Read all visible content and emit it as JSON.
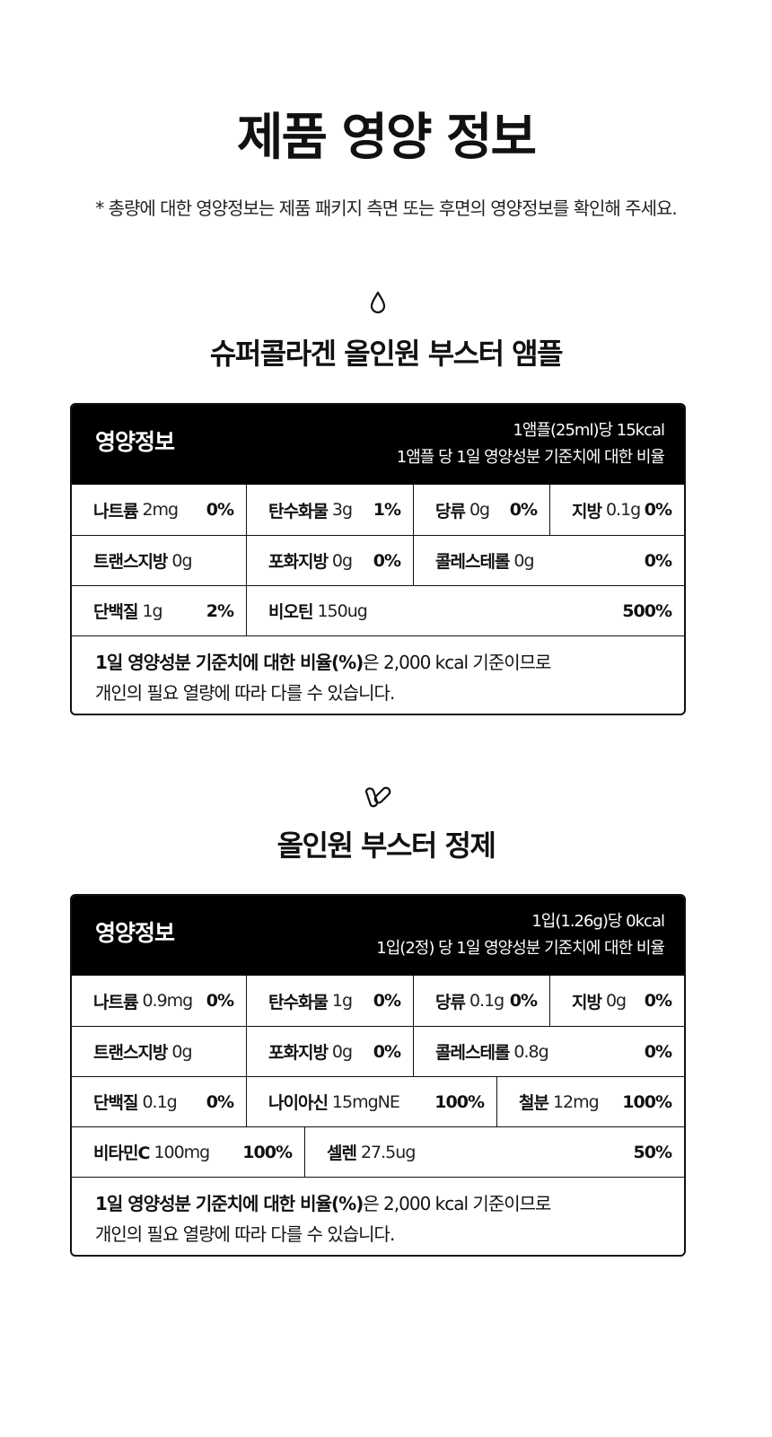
{
  "page": {
    "title": "제품 영양 정보",
    "notice": "* 총량에 대한 영양정보는 제품 패키지 측면 또는 후면의 영양정보를 확인해 주세요."
  },
  "ampoule": {
    "icon": "water-drop-icon",
    "title": "슈퍼콜라겐 올인원 부스터 앰플",
    "header_label": "영양정보",
    "serving": "1앰플(25ml)당 15kcal",
    "basis": "1앰플 당 1일 영양성분 기준치에 대한 비율",
    "rows": [
      [
        {
          "name": "나트륨",
          "amount": "2mg",
          "pct": "0%"
        },
        {
          "name": "탄수화물",
          "amount": "3g",
          "pct": "1%"
        },
        {
          "name": "당류",
          "amount": "0g",
          "pct": "0%"
        },
        {
          "name": "지방",
          "amount": "0.1g",
          "pct": "0%"
        }
      ],
      [
        {
          "name": "트랜스지방",
          "amount": "0g",
          "pct": ""
        },
        {
          "name": "포화지방",
          "amount": "0g",
          "pct": "0%"
        },
        {
          "name": "콜레스테롤",
          "amount": "0g",
          "pct": "0%"
        }
      ],
      [
        {
          "name": "단백질",
          "amount": "1g",
          "pct": "2%"
        },
        {
          "name": "비오틴",
          "amount": "150ug",
          "pct": "500%"
        }
      ]
    ],
    "note_bold": "1일 영양성분 기준치에 대한 비율(%)",
    "note_rest": "은 2,000 kcal 기준이므로",
    "note_line2": "개인의 필요 열량에 따라 다를 수 있습니다."
  },
  "tablet": {
    "icon": "capsule-pill-icon",
    "title": "올인원 부스터 정제",
    "header_label": "영양정보",
    "serving": "1입(1.26g)당 0kcal",
    "basis": "1입(2정) 당 1일 영양성분 기준치에 대한 비율",
    "rows": [
      [
        {
          "name": "나트륨",
          "amount": "0.9mg",
          "pct": "0%"
        },
        {
          "name": "탄수화물",
          "amount": "1g",
          "pct": "0%"
        },
        {
          "name": "당류",
          "amount": "0.1g",
          "pct": "0%"
        },
        {
          "name": "지방",
          "amount": "0g",
          "pct": "0%"
        }
      ],
      [
        {
          "name": "트랜스지방",
          "amount": "0g",
          "pct": ""
        },
        {
          "name": "포화지방",
          "amount": "0g",
          "pct": "0%"
        },
        {
          "name": "콜레스테롤",
          "amount": "0.8g",
          "pct": "0%"
        }
      ],
      [
        {
          "name": "단백질",
          "amount": "0.1g",
          "pct": "0%"
        },
        {
          "name": "나이아신",
          "amount": "15mgNE",
          "pct": "100%"
        },
        {
          "name": "철분",
          "amount": "12mg",
          "pct": "100%"
        }
      ],
      [
        {
          "name": "비타민C",
          "amount": "100mg",
          "pct": "100%"
        },
        {
          "name": "셀렌",
          "amount": "27.5ug",
          "pct": "50%"
        }
      ]
    ],
    "note_bold": "1일 영양성분 기준치에 대한 비율(%)",
    "note_rest": "은 2,000 kcal 기준이므로",
    "note_line2": "개인의 필요 열량에 따라 다를 수 있습니다."
  }
}
